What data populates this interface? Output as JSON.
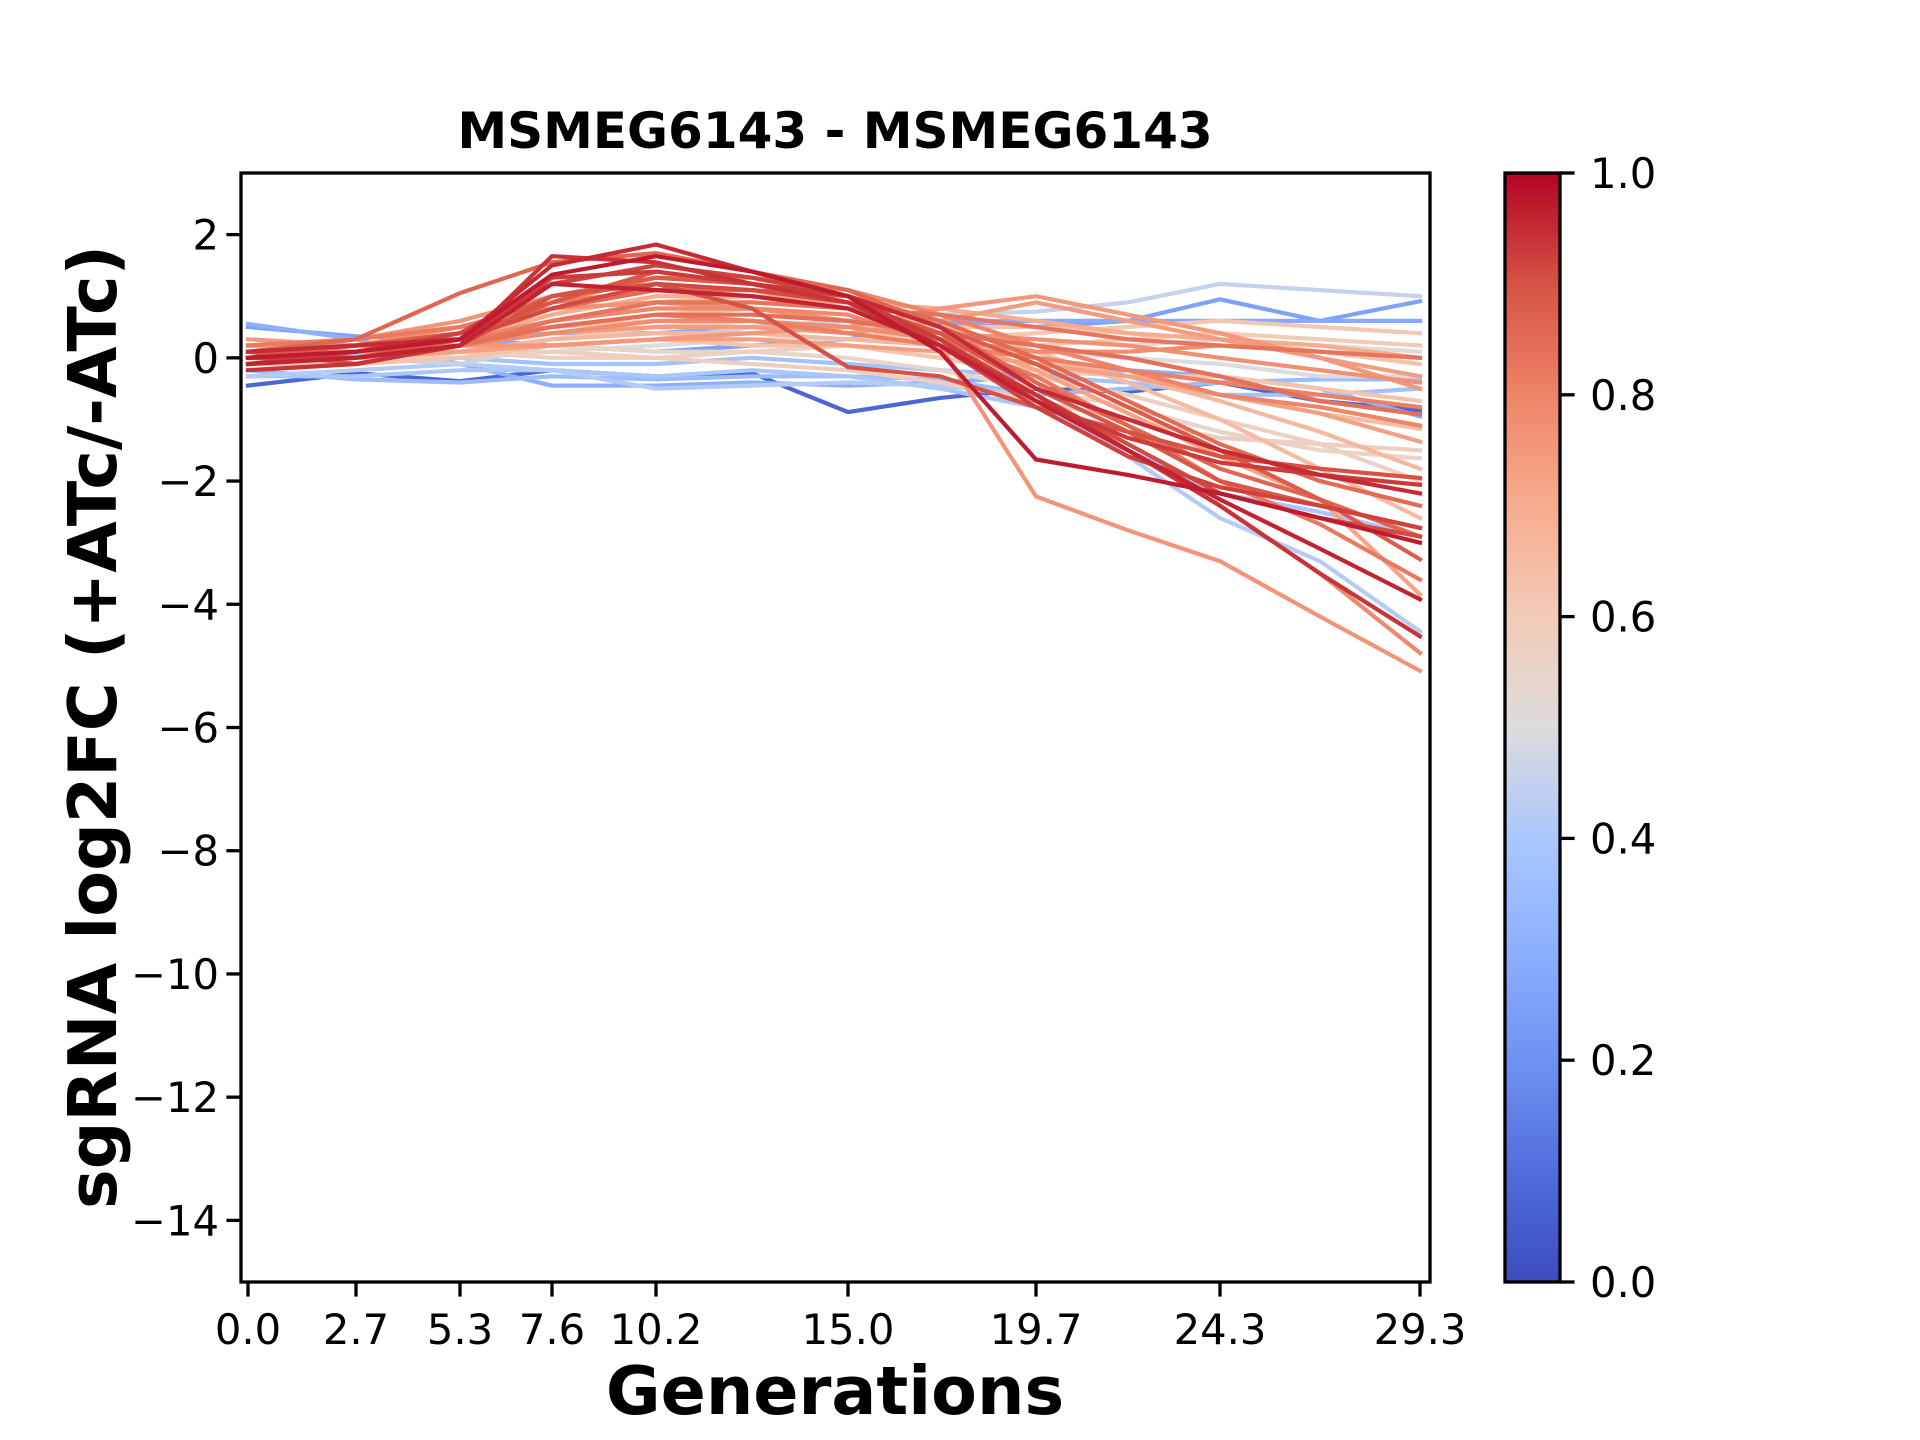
{
  "chart_data": {
    "type": "line",
    "title": "MSMEG6143 - MSMEG6143",
    "xlabel": "Generations",
    "ylabel": "sgRNA log2FC (+ATc/-ATc)",
    "xlim": [
      -0.175,
      29.55
    ],
    "ylim": [
      -15,
      3
    ],
    "grid": false,
    "legend": "none",
    "x": [
      0,
      2.7,
      5.3,
      7.6,
      10.2,
      12.6,
      15.0,
      17.3,
      19.7,
      22.0,
      24.3,
      26.8,
      29.3
    ],
    "xticks": [
      0.0,
      2.7,
      5.3,
      7.6,
      10.2,
      15.0,
      19.7,
      24.3,
      29.3
    ],
    "xtick_labels": [
      "0.0",
      "2.7",
      "5.3",
      "7.6",
      "10.2",
      "15.0",
      "19.7",
      "24.3",
      "29.3"
    ],
    "yticks": [
      2,
      0,
      -2,
      -4,
      -6,
      -8,
      -10,
      -12,
      -14
    ],
    "ytick_labels": [
      "2",
      "0",
      "−2",
      "−4",
      "−6",
      "−8",
      "−10",
      "−12",
      "−14"
    ],
    "colorbar": {
      "range": [
        0.0,
        1.0
      ],
      "ticks": [
        0.0,
        0.2,
        0.4,
        0.6,
        0.8,
        1.0
      ],
      "tick_labels": [
        "0.0",
        "0.2",
        "0.4",
        "0.6",
        "0.8",
        "1.0"
      ],
      "placement": "right"
    },
    "colormap": {
      "name": "coolwarm",
      "stops": [
        {
          "v": 0.0,
          "color": "#3b4cc0"
        },
        {
          "v": 0.1,
          "color": "#516ddb"
        },
        {
          "v": 0.2,
          "color": "#6f92f3"
        },
        {
          "v": 0.3,
          "color": "#8db0fe"
        },
        {
          "v": 0.4,
          "color": "#aac7fd"
        },
        {
          "v": 0.5,
          "color": "#dddcdc"
        },
        {
          "v": 0.6,
          "color": "#f2cbb7"
        },
        {
          "v": 0.7,
          "color": "#f7ac8e"
        },
        {
          "v": 0.8,
          "color": "#ee8468"
        },
        {
          "v": 0.9,
          "color": "#d65244"
        },
        {
          "v": 1.0,
          "color": "#b40426"
        }
      ]
    },
    "series": [
      {
        "c": 0.08,
        "values": [
          -0.45,
          -0.25,
          -0.38,
          -0.2,
          -0.3,
          -0.25,
          -0.88,
          -0.65,
          -0.5,
          -0.55,
          -0.4,
          -0.7,
          -0.85
        ]
      },
      {
        "c": 0.25,
        "values": [
          0.5,
          0.35,
          0.3,
          0.2,
          0.1,
          0.2,
          0.3,
          0.55,
          0.5,
          0.6,
          0.95,
          0.6,
          0.92
        ]
      },
      {
        "c": 0.28,
        "values": [
          0.2,
          0.2,
          0.3,
          0.4,
          0.4,
          0.5,
          0.6,
          0.6,
          0.6,
          0.6,
          0.6,
          0.6,
          0.6
        ]
      },
      {
        "c": 0.3,
        "values": [
          0.55,
          0.3,
          -0.1,
          -0.45,
          -0.45,
          -0.4,
          -0.45,
          -0.4,
          -0.3,
          -0.2,
          -0.3,
          -0.5,
          -0.95
        ]
      },
      {
        "c": 0.35,
        "values": [
          -0.2,
          -0.35,
          -0.4,
          -0.3,
          -0.35,
          -0.3,
          -0.3,
          -0.35,
          -0.6,
          -0.5,
          -0.4,
          -0.35,
          -0.35
        ]
      },
      {
        "c": 0.38,
        "values": [
          0.1,
          0.05,
          0.0,
          -0.1,
          -0.1,
          0.0,
          -0.1,
          -0.2,
          -0.3,
          -0.4,
          -0.6,
          -0.6,
          -0.5
        ]
      },
      {
        "c": 0.4,
        "values": [
          -0.3,
          -0.3,
          -0.2,
          -0.2,
          -0.3,
          -0.2,
          -0.3,
          -0.5,
          -0.8,
          -1.5,
          -2.2,
          -2.5,
          -2.9
        ]
      },
      {
        "c": 0.42,
        "values": [
          -0.3,
          -0.2,
          -0.1,
          -0.2,
          -0.5,
          -0.45,
          -0.4,
          -0.45,
          -0.6,
          -1.6,
          -2.6,
          -3.3,
          -4.44
        ]
      },
      {
        "c": 0.45,
        "values": [
          0.1,
          0.0,
          -0.1,
          0.2,
          0.3,
          0.5,
          0.6,
          0.7,
          0.75,
          0.9,
          1.2,
          1.1,
          1.0
        ]
      },
      {
        "c": 0.5,
        "values": [
          0.1,
          0.1,
          0.0,
          0.1,
          0.2,
          0.3,
          0.3,
          0.3,
          0.1,
          0.0,
          -0.1,
          -0.3,
          -0.3
        ]
      },
      {
        "c": 0.52,
        "values": [
          -0.1,
          0.0,
          0.1,
          0.3,
          0.4,
          0.4,
          0.5,
          0.4,
          0.3,
          0.2,
          0.3,
          0.2,
          0.1
        ]
      },
      {
        "c": 0.55,
        "values": [
          0.0,
          0.1,
          0.2,
          0.2,
          0.1,
          0.1,
          0.0,
          -0.2,
          -0.5,
          -0.8,
          -1.2,
          -1.5,
          -1.63
        ]
      },
      {
        "c": 0.57,
        "values": [
          0.2,
          0.2,
          0.1,
          0.0,
          0.0,
          0.1,
          0.2,
          0.0,
          -0.3,
          -0.6,
          -1.0,
          -1.4,
          -2.0
        ]
      },
      {
        "c": 0.58,
        "values": [
          -0.2,
          -0.1,
          0.0,
          0.1,
          0.0,
          -0.1,
          -0.2,
          -0.4,
          -0.7,
          -1.0,
          -1.3,
          -1.4,
          -1.5
        ]
      },
      {
        "c": 0.6,
        "values": [
          -0.1,
          -0.1,
          0.1,
          0.3,
          0.5,
          0.6,
          0.5,
          0.4,
          0.2,
          0.3,
          0.4,
          0.3,
          0.2
        ]
      },
      {
        "c": 0.61,
        "values": [
          0.0,
          0.1,
          0.2,
          0.4,
          0.5,
          0.5,
          0.4,
          0.3,
          0.4,
          0.5,
          0.6,
          0.5,
          0.4
        ]
      },
      {
        "c": 0.62,
        "values": [
          0.0,
          -0.1,
          0.0,
          0.2,
          0.3,
          0.2,
          0.2,
          0.0,
          -0.2,
          -0.3,
          -0.3,
          -0.5,
          -0.7
        ]
      },
      {
        "c": 0.63,
        "values": [
          -0.1,
          0.0,
          0.2,
          0.5,
          0.6,
          0.6,
          0.5,
          0.5,
          0.5,
          0.4,
          0.3,
          0.1,
          -0.1
        ]
      },
      {
        "c": 0.64,
        "values": [
          0.1,
          0.2,
          0.3,
          0.5,
          0.7,
          0.8,
          0.6,
          0.3,
          0.0,
          -0.3,
          -0.6,
          -0.9,
          -1.15
        ]
      },
      {
        "c": 0.65,
        "values": [
          0.2,
          0.1,
          0.3,
          0.6,
          0.9,
          1.0,
          0.8,
          0.5,
          0.1,
          -0.4,
          -1.0,
          -1.8,
          -2.6
        ]
      },
      {
        "c": 0.66,
        "values": [
          0.1,
          0.0,
          0.1,
          0.3,
          0.4,
          0.4,
          0.3,
          0.2,
          0.0,
          -0.3,
          -0.7,
          -1.2,
          -1.8
        ]
      },
      {
        "c": 0.7,
        "values": [
          0.0,
          0.1,
          0.3,
          0.7,
          1.0,
          1.0,
          0.9,
          0.8,
          0.6,
          0.4,
          0.3,
          0.2,
          0.0
        ]
      },
      {
        "c": 0.72,
        "values": [
          0.1,
          0.2,
          0.4,
          0.8,
          1.2,
          1.1,
          0.8,
          0.4,
          -0.2,
          -0.9,
          -1.6,
          -2.3,
          -3.84
        ]
      },
      {
        "c": 0.73,
        "values": [
          0.0,
          0.0,
          0.1,
          0.2,
          0.3,
          0.3,
          0.2,
          0.1,
          -0.1,
          -0.3,
          -0.6,
          -0.9,
          -1.36
        ]
      },
      {
        "c": 0.74,
        "values": [
          -0.1,
          0.0,
          0.2,
          0.4,
          0.5,
          0.5,
          0.4,
          0.6,
          0.9,
          0.6,
          0.3,
          0.0,
          -0.3
        ]
      },
      {
        "c": 0.75,
        "values": [
          0.3,
          0.2,
          0.2,
          0.2,
          0.3,
          0.4,
          0.5,
          0.8,
          1.0,
          0.7,
          0.4,
          0.0,
          -0.5
        ]
      },
      {
        "c": 0.76,
        "values": [
          0.2,
          0.3,
          0.6,
          1.0,
          1.3,
          1.2,
          1.0,
          0.2,
          -2.25,
          -2.8,
          -3.3,
          -4.2,
          -5.08
        ]
      },
      {
        "c": 0.77,
        "values": [
          0.1,
          0.2,
          0.5,
          0.8,
          0.9,
          0.8,
          0.6,
          0.4,
          0.3,
          0.2,
          0.0,
          -0.2,
          -0.4
        ]
      },
      {
        "c": 0.78,
        "values": [
          0.0,
          0.1,
          0.2,
          0.4,
          0.6,
          0.6,
          0.5,
          0.3,
          0.1,
          0.1,
          0.2,
          0.1,
          0.0
        ]
      },
      {
        "c": 0.79,
        "values": [
          -0.1,
          0.0,
          0.3,
          0.6,
          0.8,
          0.8,
          0.7,
          0.2,
          -0.6,
          -1.5,
          -2.4,
          -3.5,
          -4.79
        ]
      },
      {
        "c": 0.8,
        "values": [
          0.1,
          0.2,
          0.4,
          0.9,
          1.3,
          1.3,
          1.1,
          0.7,
          0.2,
          -0.2,
          -0.6,
          -0.8,
          -1.1
        ]
      },
      {
        "c": 0.81,
        "values": [
          0.0,
          0.1,
          0.3,
          0.5,
          0.7,
          0.6,
          0.4,
          0.2,
          0.0,
          -0.2,
          -0.4,
          -0.6,
          -0.8
        ]
      },
      {
        "c": 0.82,
        "values": [
          0.2,
          0.3,
          0.5,
          0.9,
          1.1,
          1.0,
          0.8,
          0.3,
          -0.3,
          -1.1,
          -2.0,
          -2.7,
          -3.6
        ]
      },
      {
        "c": 0.83,
        "values": [
          0.1,
          0.0,
          0.2,
          0.6,
          0.9,
          0.9,
          0.8,
          0.7,
          0.5,
          0.3,
          0.2,
          0.1,
          0.0
        ]
      },
      {
        "c": 0.84,
        "values": [
          -0.1,
          0.0,
          0.2,
          0.5,
          0.7,
          0.7,
          0.6,
          0.4,
          0.2,
          0.0,
          -0.3,
          -0.7,
          -0.92
        ]
      },
      {
        "c": 0.85,
        "values": [
          0.0,
          0.1,
          0.3,
          0.8,
          1.1,
          1.1,
          1.0,
          0.6,
          0.0,
          -0.7,
          -1.4,
          -2.0,
          -2.4
        ]
      },
      {
        "c": 0.86,
        "values": [
          0.1,
          0.3,
          1.05,
          1.55,
          1.7,
          1.4,
          1.1,
          0.5,
          -0.4,
          -1.1,
          -1.8,
          -2.3,
          -2.9
        ]
      },
      {
        "c": 0.88,
        "values": [
          0.0,
          0.2,
          0.4,
          1.0,
          1.3,
          1.2,
          1.0,
          0.5,
          -0.1,
          -0.8,
          -1.5,
          -2.3,
          -3.27
        ]
      },
      {
        "c": 0.89,
        "values": [
          -0.1,
          0.0,
          0.3,
          0.9,
          1.4,
          1.2,
          0.9,
          0.4,
          -0.5,
          -1.2,
          -2.0,
          -2.4,
          -2.76
        ]
      },
      {
        "c": 0.9,
        "values": [
          0.1,
          -0.1,
          0.2,
          1.0,
          1.2,
          0.8,
          -0.15,
          -0.3,
          -0.8,
          -1.2,
          -1.6,
          -1.8,
          -1.95
        ]
      },
      {
        "c": 0.91,
        "values": [
          0.0,
          0.1,
          0.3,
          0.8,
          1.2,
          1.1,
          0.9,
          0.3,
          -0.6,
          -1.4,
          -2.2,
          -2.6,
          -2.9
        ]
      },
      {
        "c": 0.92,
        "values": [
          -0.1,
          0.1,
          0.4,
          1.2,
          1.5,
          1.3,
          1.0,
          0.2,
          -0.8,
          -1.6,
          -2.1,
          -2.4,
          -2.76
        ]
      },
      {
        "c": 0.93,
        "values": [
          0.0,
          0.0,
          0.2,
          1.3,
          1.4,
          1.2,
          1.0,
          0.3,
          -0.7,
          -1.3,
          -1.7,
          -1.9,
          -2.06
        ]
      },
      {
        "c": 0.94,
        "values": [
          -0.2,
          -0.1,
          0.2,
          1.65,
          1.55,
          1.2,
          0.9,
          0.2,
          -0.6,
          -1.5,
          -2.4,
          -3.5,
          -4.52
        ]
      },
      {
        "c": 0.95,
        "values": [
          0.1,
          0.2,
          0.3,
          1.5,
          1.84,
          1.4,
          1.0,
          0.5,
          -0.5,
          -1.0,
          -1.5,
          -1.9,
          -2.2
        ]
      },
      {
        "c": 0.96,
        "values": [
          -0.1,
          0.0,
          0.2,
          1.2,
          1.1,
          1.0,
          0.8,
          0.2,
          -0.7,
          -1.5,
          -2.3,
          -3.1,
          -3.92
        ]
      },
      {
        "c": 0.97,
        "values": [
          0.0,
          0.1,
          0.3,
          1.35,
          1.65,
          1.4,
          1.0,
          0.1,
          -1.65,
          -1.9,
          -2.2,
          -2.6,
          -3.0
        ]
      }
    ]
  }
}
